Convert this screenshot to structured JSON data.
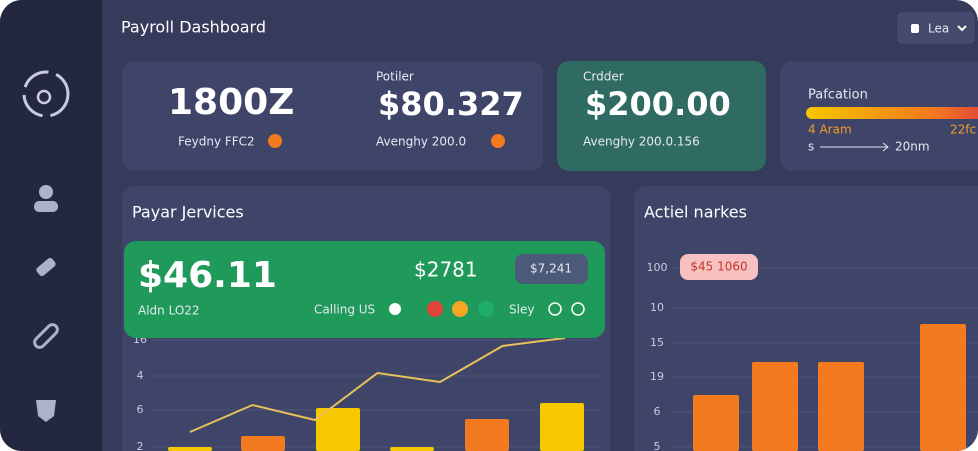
{
  "header": {
    "title": "Payroll Dashboard",
    "button": "Lea"
  },
  "stats": [
    {
      "value": "1800Z",
      "caption": "Feydny FFC2"
    },
    {
      "label": "Potiler",
      "value": "$80.327",
      "caption": "Avenghy 200.0"
    },
    {
      "label": "Crdder",
      "value": "$200.00",
      "caption": "Avenghy 200.0.156"
    }
  ],
  "progress": {
    "label": "Pafcation",
    "left": "4 Aram",
    "right": "22fc",
    "start": "s",
    "end": "20nm"
  },
  "payroll_panel": {
    "title": "Payar Jervices",
    "card": {
      "value": "$46.11",
      "caption": "Aldn LO22",
      "amount": "$2781",
      "badge": "$7,241",
      "link": "Calling US",
      "status": "Sley"
    },
    "chart": {
      "type": "bar",
      "axis_labels": [
        "16",
        "4",
        "6",
        "2"
      ],
      "ylim": [
        0,
        120
      ],
      "values": [
        4,
        15,
        43,
        4,
        32,
        48
      ],
      "colors": [
        "#f5c800",
        "#f47a1f",
        "#f5c800",
        "#f5c800",
        "#f47a1f",
        "#f5c800"
      ],
      "line": [
        19,
        46,
        31,
        78,
        69,
        105,
        113
      ],
      "line_color": "#e8c15a"
    }
  },
  "market_panel": {
    "title": "Actiel narkes",
    "badge": "$45 1060",
    "chart": {
      "type": "bar",
      "axis_labels": [
        "100",
        "10",
        "15",
        "19",
        "6",
        "5"
      ],
      "ylim": [
        0,
        140
      ],
      "values": [
        56,
        89,
        89,
        127
      ],
      "color": "#f47a1f"
    }
  }
}
